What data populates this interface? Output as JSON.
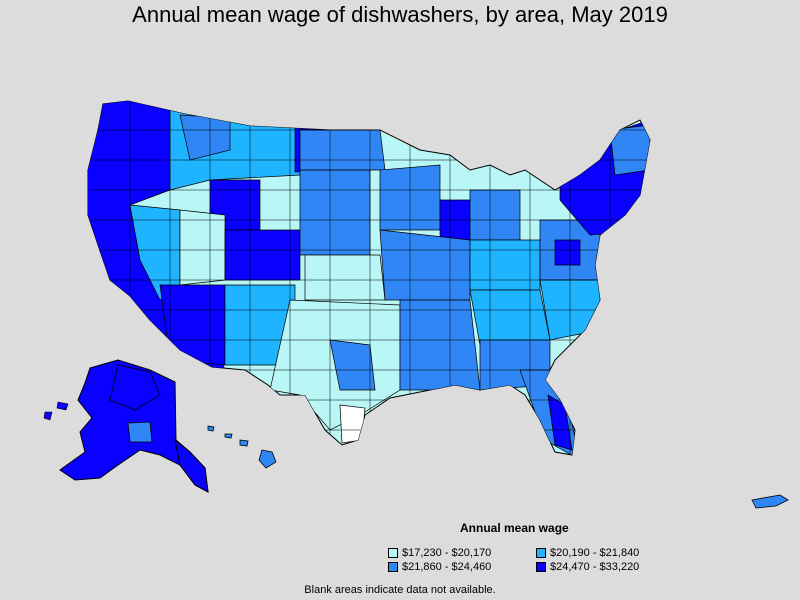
{
  "title": "Annual mean wage of dishwashers, by area, May 2019",
  "legend": {
    "title": "Annual mean wage",
    "items": [
      {
        "label": "$17,230 - $20,170",
        "color": "#b9f6f6"
      },
      {
        "label": "$20,190 - $21,840",
        "color": "#1eb4ff"
      },
      {
        "label": "$21,860 - $24,460",
        "color": "#2f86f4"
      },
      {
        "label": "$24,470 - $33,220",
        "color": "#0a00ff"
      }
    ]
  },
  "note": "Blank areas indicate data not available.",
  "colors": {
    "background": "#dcdcdc",
    "border": "#000000",
    "no_data": "#ffffff"
  }
}
